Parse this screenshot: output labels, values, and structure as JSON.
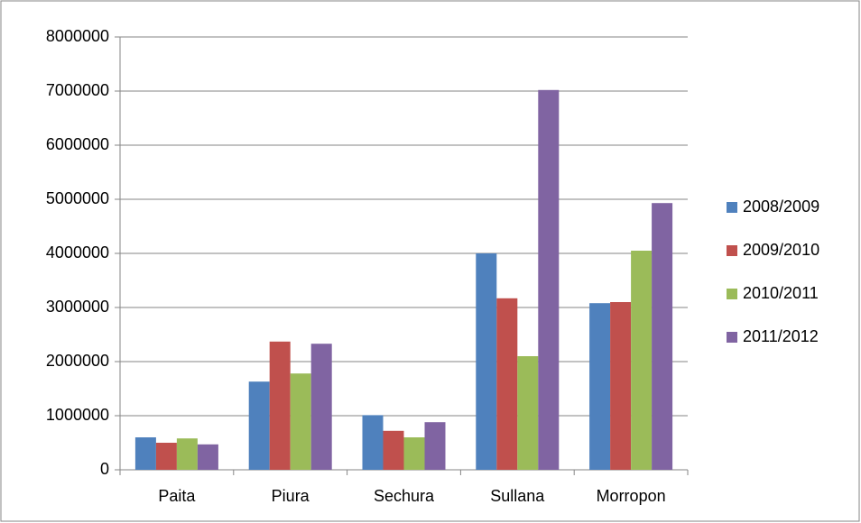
{
  "chart_data": {
    "type": "bar",
    "categories": [
      "Paita",
      "Piura",
      "Sechura",
      "Sullana",
      "Morropon"
    ],
    "series": [
      {
        "name": "2008/2009",
        "color": "#4f81bd",
        "values": [
          600000,
          1630000,
          1010000,
          4000000,
          3080000
        ]
      },
      {
        "name": "2009/2010",
        "color": "#c0504d",
        "values": [
          500000,
          2370000,
          720000,
          3170000,
          3100000
        ]
      },
      {
        "name": "2010/2011",
        "color": "#9bbb59",
        "values": [
          580000,
          1780000,
          600000,
          2100000,
          4050000
        ]
      },
      {
        "name": "2011/2012",
        "color": "#8064a2",
        "values": [
          470000,
          2330000,
          880000,
          7020000,
          4930000
        ]
      }
    ],
    "ylim": [
      0,
      8000000
    ],
    "yticks": [
      0,
      1000000,
      2000000,
      3000000,
      4000000,
      5000000,
      6000000,
      7000000,
      8000000
    ],
    "grid": true,
    "legend": "right"
  }
}
